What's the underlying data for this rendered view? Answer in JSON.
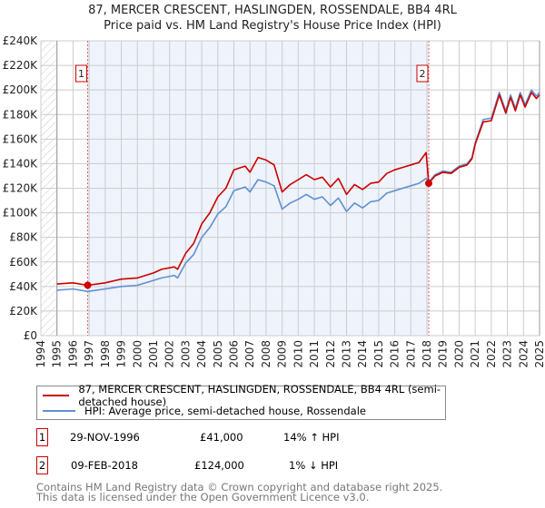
{
  "title_line1": "87, MERCER CRESCENT, HASLINGDEN, ROSSENDALE, BB4 4RL",
  "title_line2": "Price paid vs. HM Land Registry's House Price Index (HPI)",
  "colors": {
    "price": "#cc0000",
    "hpi": "#6090d0",
    "shade": "#eef3fc",
    "grid": "#cccccc"
  },
  "legend": {
    "price_label": "87, MERCER CRESCENT, HASLINGDEN, ROSSENDALE, BB4 4RL (semi-detached house)",
    "hpi_label": "HPI: Average price, semi-detached house, Rossendale"
  },
  "sales": [
    {
      "num": "1",
      "date": "29-NOV-1996",
      "price": "£41,000",
      "hpi": "14% ↑ HPI"
    },
    {
      "num": "2",
      "date": "09-FEB-2018",
      "price": "£124,000",
      "hpi": "1% ↓ HPI"
    }
  ],
  "footer": {
    "line1": "Contains HM Land Registry data © Crown copyright and database right 2025.",
    "line2": "This data is licensed under the Open Government Licence v3.0."
  },
  "chart_data": {
    "type": "line",
    "title": "87, MERCER CRESCENT, HASLINGDEN, ROSSENDALE, BB4 4RL — Price paid vs. HM Land Registry's House Price Index (HPI)",
    "xlabel": "",
    "ylabel": "",
    "xlim": [
      1994,
      2025
    ],
    "ylim": [
      0,
      240000
    ],
    "x_ticks": [
      "1994",
      "1995",
      "1996",
      "1997",
      "1998",
      "1999",
      "2000",
      "2001",
      "2002",
      "2003",
      "2004",
      "2005",
      "2006",
      "2007",
      "2008",
      "2009",
      "2010",
      "2011",
      "2012",
      "2013",
      "2014",
      "2015",
      "2016",
      "2017",
      "2018",
      "2019",
      "2020",
      "2021",
      "2022",
      "2023",
      "2024",
      "2025"
    ],
    "y_ticks": [
      {
        "v": 0,
        "label": "£0"
      },
      {
        "v": 20000,
        "label": "£20K"
      },
      {
        "v": 40000,
        "label": "£40K"
      },
      {
        "v": 60000,
        "label": "£60K"
      },
      {
        "v": 80000,
        "label": "£80K"
      },
      {
        "v": 100000,
        "label": "£100K"
      },
      {
        "v": 120000,
        "label": "£120K"
      },
      {
        "v": 140000,
        "label": "£140K"
      },
      {
        "v": 160000,
        "label": "£160K"
      },
      {
        "v": 180000,
        "label": "£180K"
      },
      {
        "v": 200000,
        "label": "£200K"
      },
      {
        "v": 220000,
        "label": "£220K"
      },
      {
        "v": 240000,
        "label": "£240K"
      }
    ],
    "grid": true,
    "legend_position": "below",
    "shaded_range": [
      1996.91,
      2018.11
    ],
    "x": [
      1995.0,
      1996.0,
      1996.91,
      1998,
      1999,
      2000,
      2001,
      2001.5,
      2002.3,
      2002.5,
      2003,
      2003.5,
      2004,
      2004.5,
      2005,
      2005.5,
      2006,
      2006.7,
      2007,
      2007.5,
      2008,
      2008.5,
      2009,
      2009.5,
      2010,
      2010.5,
      2011,
      2011.5,
      2012,
      2012.5,
      2013,
      2013.5,
      2014,
      2014.5,
      2015,
      2015.5,
      2016,
      2016.5,
      2017,
      2017.5,
      2017.95,
      2018.11,
      2018.5,
      2019,
      2019.5,
      2020,
      2020.5,
      2020.8,
      2021,
      2021.5,
      2022,
      2022.5,
      2022.9,
      2023.2,
      2023.5,
      2023.8,
      2024.1,
      2024.5,
      2024.8,
      2025
    ],
    "series": [
      {
        "name": "87, MERCER CRESCENT, HASLINGDEN, ROSSENDALE, BB4 4RL (semi-detached house)",
        "color": "#cc0000",
        "values": [
          42000,
          43000,
          41000,
          43000,
          46000,
          47000,
          51000,
          54000,
          56000,
          54000,
          67000,
          75000,
          91000,
          100000,
          113000,
          120000,
          135000,
          138000,
          133000,
          145000,
          143000,
          139000,
          117000,
          123000,
          127000,
          131000,
          127000,
          129000,
          121000,
          128000,
          115000,
          123000,
          119000,
          124000,
          125000,
          132000,
          135000,
          137000,
          139000,
          141000,
          149000,
          124000,
          130000,
          133000,
          132000,
          137000,
          139000,
          144000,
          156000,
          174000,
          175000,
          196000,
          181000,
          194000,
          183000,
          196000,
          186000,
          198000,
          193000,
          196000
        ]
      },
      {
        "name": "HPI: Average price, semi-detached house, Rossendale",
        "color": "#6090d0",
        "values": [
          37000,
          38000,
          36000,
          38000,
          40000,
          41000,
          45000,
          47000,
          49000,
          47000,
          59000,
          66000,
          80000,
          88000,
          99000,
          105000,
          118000,
          121000,
          117000,
          127000,
          125000,
          122000,
          103000,
          108000,
          111000,
          115000,
          111000,
          113000,
          106000,
          112000,
          101000,
          108000,
          104000,
          109000,
          110000,
          116000,
          118000,
          120000,
          122000,
          124000,
          128000,
          125000,
          131000,
          134000,
          133000,
          138000,
          140000,
          145000,
          157000,
          176000,
          177000,
          198000,
          183000,
          196000,
          185000,
          198000,
          188000,
          200000,
          195000,
          198000
        ]
      }
    ],
    "annotations": [
      {
        "label": "1",
        "x": 1996.91,
        "value": 41000
      },
      {
        "label": "2",
        "x": 2018.11,
        "value": 124000
      }
    ]
  }
}
